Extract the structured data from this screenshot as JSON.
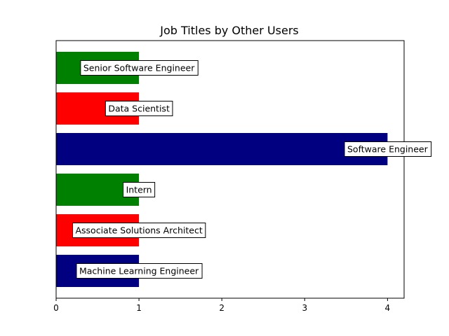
{
  "chart_data": {
    "type": "bar",
    "orientation": "horizontal",
    "title": "Job Titles by Other Users",
    "xlabel": "",
    "ylabel": "",
    "categories": [
      "Machine Learning Engineer",
      "Associate Solutions Architect",
      "Intern",
      "Software Engineer",
      "Data Scientist",
      "Senior Software Engineer"
    ],
    "values": [
      1,
      1,
      1,
      4,
      1,
      1
    ],
    "colors": [
      "#000080",
      "#ff0000",
      "#008000",
      "#000080",
      "#ff0000",
      "#008000"
    ],
    "xlim": [
      0,
      4.2
    ],
    "xticks": [
      "0",
      "1",
      "2",
      "3",
      "4"
    ],
    "yticks_visible": false,
    "grid": false,
    "legend": "none",
    "data_labels_boxed": true
  }
}
